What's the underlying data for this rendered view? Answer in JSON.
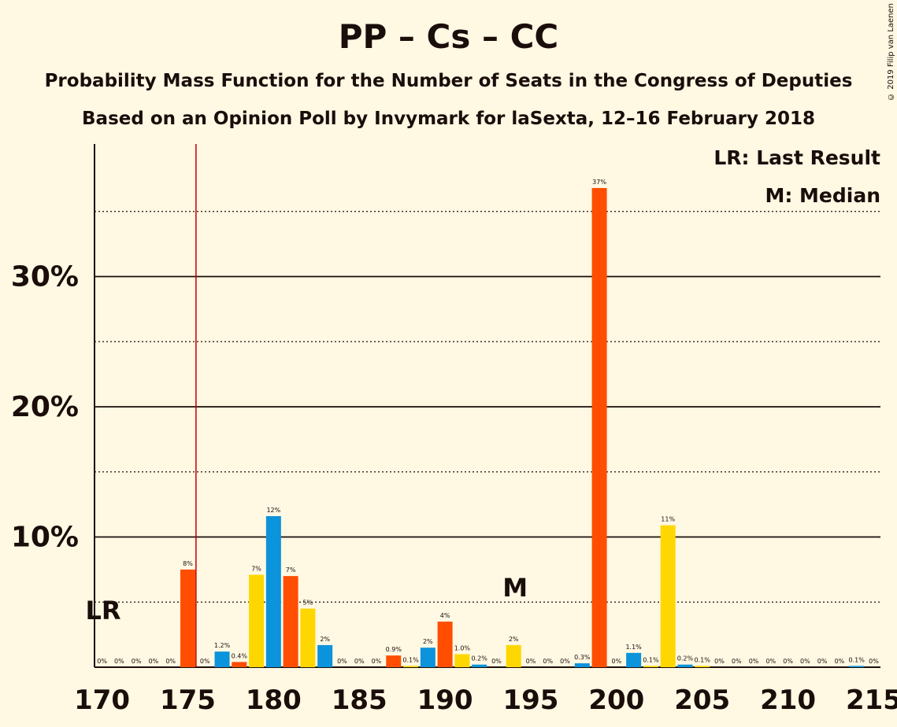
{
  "title": "PP – Cs – CC",
  "subtitle1": "Probability Mass Function for the Number of Seats in the Congress of Deputies",
  "subtitle2": "Based on an Opinion Poll by Invymark for laSexta, 12–16 February 2018",
  "copyright": "© 2019 Filip van Laenen",
  "legend": {
    "last_result": "LR: Last Result",
    "median": "M: Median"
  },
  "colors": {
    "pp": "#0B93DB",
    "cs": "#FF4E00",
    "cc": "#FFD700",
    "lastResultLine": "#C00000",
    "background": "#FFF8E3"
  },
  "chart_data": {
    "type": "bar",
    "xlim": [
      170,
      215
    ],
    "ylim": [
      0,
      40
    ],
    "xticks": [
      "170",
      "175",
      "180",
      "185",
      "190",
      "195",
      "200",
      "205",
      "210",
      "215"
    ],
    "yticks": [
      "10%",
      "20%",
      "30%"
    ],
    "last_result": {
      "x": 176,
      "label": "LR"
    },
    "median": {
      "x": 194,
      "label": "M"
    },
    "bars": [
      {
        "x": 170,
        "value": 0,
        "color": "pp",
        "label": "0%"
      },
      {
        "x": 171,
        "value": 0,
        "color": "cs",
        "label": "0%"
      },
      {
        "x": 172,
        "value": 0,
        "color": "cc",
        "label": "0%"
      },
      {
        "x": 173,
        "value": 0,
        "color": "pp",
        "label": "0%"
      },
      {
        "x": 174,
        "value": 0,
        "color": "cc",
        "label": "0%"
      },
      {
        "x": 175,
        "value": 7.5,
        "color": "cs",
        "label": "8%"
      },
      {
        "x": 176,
        "value": 0,
        "color": "cc",
        "label": "0%"
      },
      {
        "x": 177,
        "value": 1.2,
        "color": "pp",
        "label": "1.2%"
      },
      {
        "x": 178,
        "value": 0.4,
        "color": "cs",
        "label": "0.4%"
      },
      {
        "x": 179,
        "value": 7.1,
        "color": "cc",
        "label": "7%"
      },
      {
        "x": 180,
        "value": 11.6,
        "color": "pp",
        "label": "12%"
      },
      {
        "x": 181,
        "value": 7.0,
        "color": "cs",
        "label": "7%"
      },
      {
        "x": 182,
        "value": 4.5,
        "color": "cc",
        "label": "5%"
      },
      {
        "x": 183,
        "value": 1.7,
        "color": "pp",
        "label": "2%"
      },
      {
        "x": 184,
        "value": 0,
        "color": "cc",
        "label": "0%"
      },
      {
        "x": 185,
        "value": 0,
        "color": "pp",
        "label": "0%"
      },
      {
        "x": 186,
        "value": 0,
        "color": "cc",
        "label": "0%"
      },
      {
        "x": 187,
        "value": 0.9,
        "color": "cs",
        "label": "0.9%"
      },
      {
        "x": 188,
        "value": 0.1,
        "color": "cc",
        "label": "0.1%"
      },
      {
        "x": 189,
        "value": 1.5,
        "color": "pp",
        "label": "2%"
      },
      {
        "x": 190,
        "value": 3.5,
        "color": "cs",
        "label": "4%"
      },
      {
        "x": 191,
        "value": 1.0,
        "color": "cc",
        "label": "1.0%"
      },
      {
        "x": 192,
        "value": 0.2,
        "color": "pp",
        "label": "0.2%"
      },
      {
        "x": 193,
        "value": 0,
        "color": "cc",
        "label": "0%"
      },
      {
        "x": 194,
        "value": 1.7,
        "color": "cc",
        "label": "2%"
      },
      {
        "x": 195,
        "value": 0,
        "color": "pp",
        "label": "0%"
      },
      {
        "x": 196,
        "value": 0,
        "color": "cc",
        "label": "0%"
      },
      {
        "x": 197,
        "value": 0,
        "color": "cs",
        "label": "0%"
      },
      {
        "x": 198,
        "value": 0.3,
        "color": "pp",
        "label": "0.3%"
      },
      {
        "x": 199,
        "value": 36.8,
        "color": "cs",
        "label": "37%"
      },
      {
        "x": 200,
        "value": 0,
        "color": "cc",
        "label": "0%"
      },
      {
        "x": 201,
        "value": 1.1,
        "color": "pp",
        "label": "1.1%"
      },
      {
        "x": 202,
        "value": 0.1,
        "color": "cc",
        "label": "0.1%"
      },
      {
        "x": 203,
        "value": 10.9,
        "color": "cc",
        "label": "11%"
      },
      {
        "x": 204,
        "value": 0.2,
        "color": "pp",
        "label": "0.2%"
      },
      {
        "x": 205,
        "value": 0.1,
        "color": "cc",
        "label": "0.1%"
      },
      {
        "x": 206,
        "value": 0,
        "color": "pp",
        "label": "0%"
      },
      {
        "x": 207,
        "value": 0,
        "color": "cc",
        "label": "0%"
      },
      {
        "x": 208,
        "value": 0,
        "color": "pp",
        "label": "0%"
      },
      {
        "x": 209,
        "value": 0,
        "color": "cc",
        "label": "0%"
      },
      {
        "x": 210,
        "value": 0,
        "color": "pp",
        "label": "0%"
      },
      {
        "x": 211,
        "value": 0,
        "color": "cc",
        "label": "0%"
      },
      {
        "x": 212,
        "value": 0,
        "color": "pp",
        "label": "0%"
      },
      {
        "x": 213,
        "value": 0,
        "color": "cc",
        "label": "0%"
      },
      {
        "x": 214,
        "value": 0.1,
        "color": "pp",
        "label": "0.1%"
      },
      {
        "x": 215,
        "value": 0,
        "color": "cc",
        "label": "0%"
      }
    ]
  }
}
